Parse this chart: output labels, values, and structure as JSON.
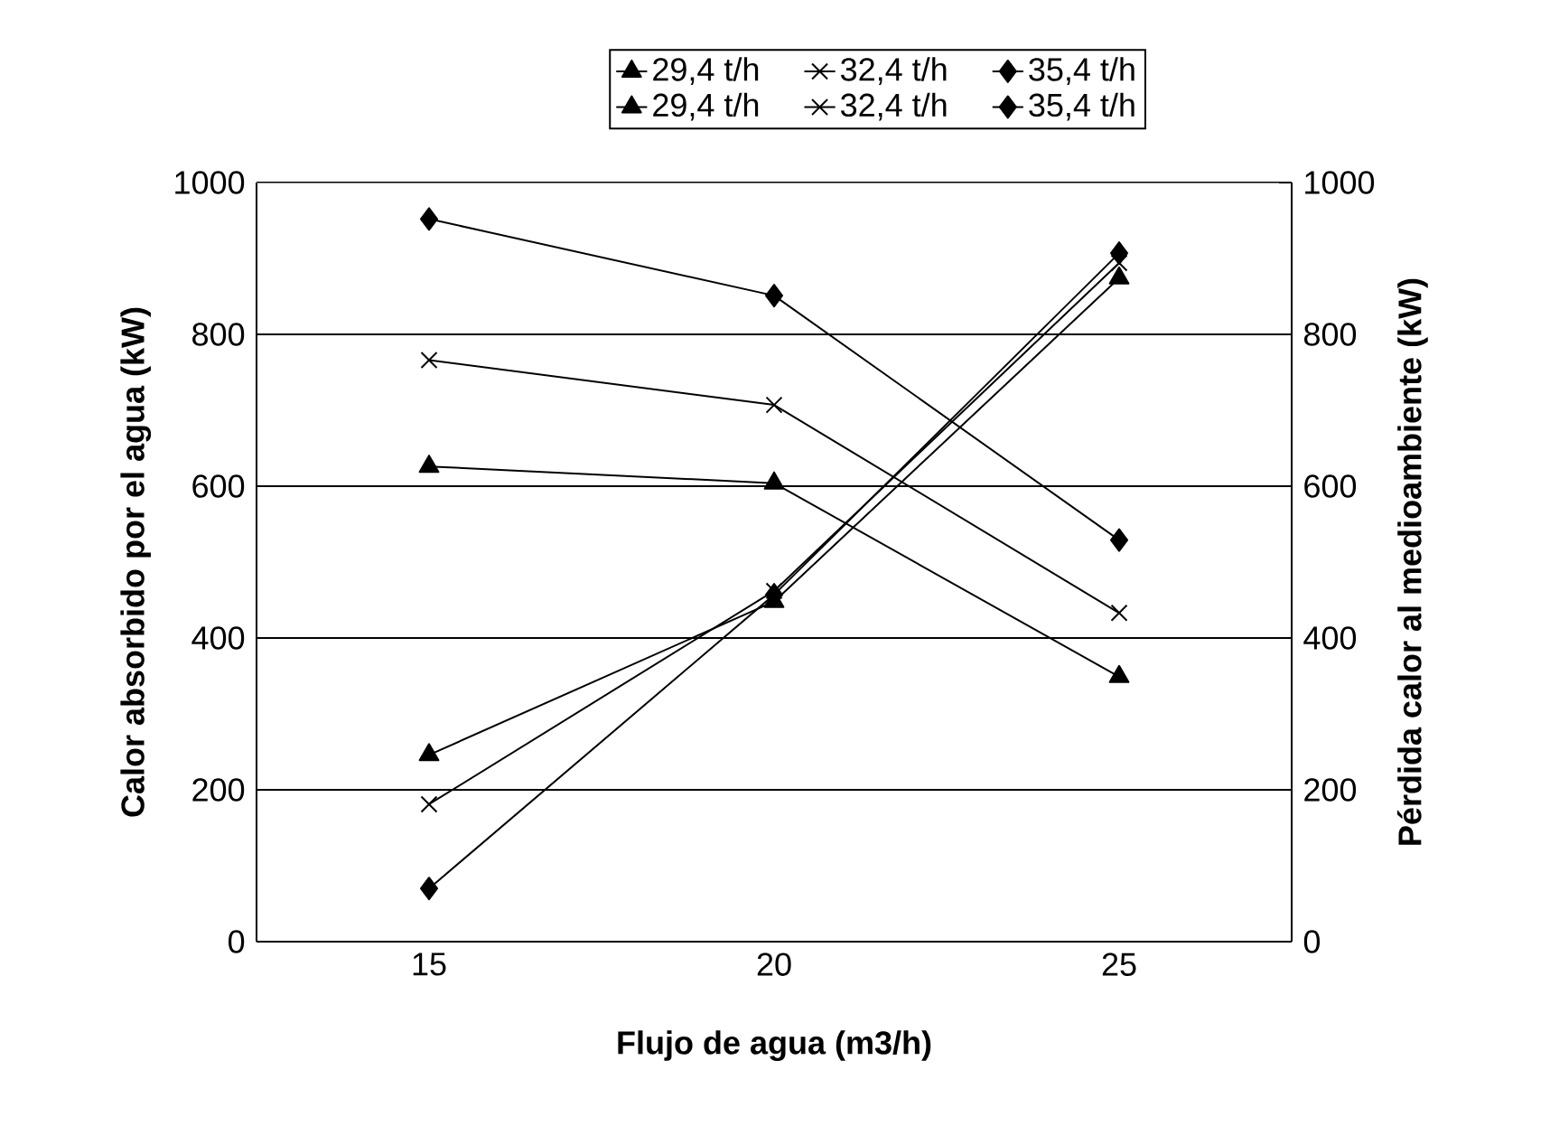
{
  "chart_data": {
    "type": "line",
    "xlabel": "Flujo de agua (m3/h)",
    "ylabel": "Calor absorbido por el agua (kW)",
    "y2label": "Pérdida calor al medioambiente (kW)",
    "categories": [
      "15",
      "20",
      "25"
    ],
    "series": [
      {
        "name": "29,4 t/h",
        "color": "#000000",
        "marker": "triangle",
        "values": [
          246,
          448,
          874
        ]
      },
      {
        "name": "32,4 t/h",
        "color": "#000000",
        "marker": "cross",
        "values": [
          181,
          462,
          894
        ]
      },
      {
        "name": "35,4 t/h",
        "color": "#000000",
        "marker": "diamond",
        "values": [
          70,
          457,
          907
        ]
      },
      {
        "name": "29,4 t/h",
        "color": "#000000",
        "marker": "triangle",
        "axis": "y2",
        "values": [
          626,
          604,
          349
        ]
      },
      {
        "name": "32,4 t/h",
        "color": "#000000",
        "marker": "cross",
        "axis": "y2",
        "values": [
          766,
          707,
          433
        ]
      },
      {
        "name": "35,4 t/h",
        "color": "#000000",
        "marker": "diamond",
        "axis": "y2",
        "values": [
          952,
          851,
          529
        ]
      }
    ],
    "ylim": [
      0,
      1000
    ],
    "yticks": [
      0,
      200,
      400,
      600,
      800,
      1000
    ],
    "y2lim": [
      0,
      1000
    ],
    "y2ticks": [
      0,
      200,
      400,
      600,
      800,
      1000
    ],
    "grid": "y",
    "legend": "top",
    "line_style": "solid"
  }
}
